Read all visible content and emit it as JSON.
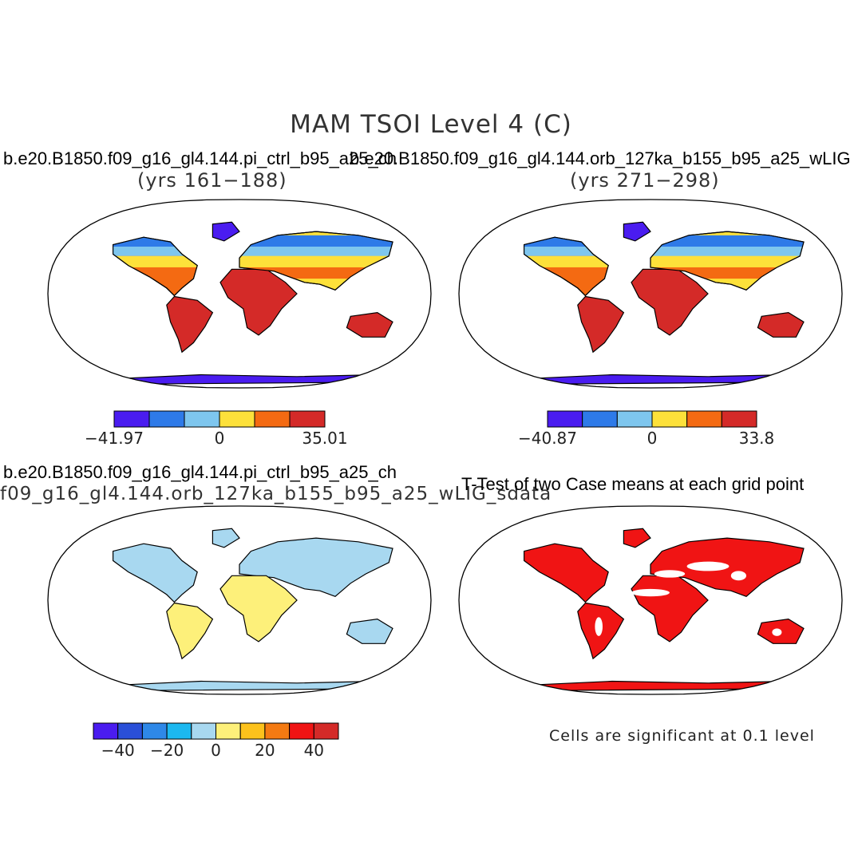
{
  "title": "MAM TSOI Level 4 (C)",
  "panels": {
    "case1": {
      "title": "b.e20.B1850.f09_g16_gl4.144.pi_ctrl_b95_a25_ch",
      "years": "(yrs 161−188)",
      "colorbar": {
        "min_label": "−41.97",
        "mid_label": "0",
        "max_label": "35.01",
        "colors": [
          "#4a1cf0",
          "#2e7ae8",
          "#7ec6ee",
          "#fde13a",
          "#f46a12",
          "#d42a28"
        ]
      }
    },
    "case2": {
      "title": "b.e20.B1850.f09_g16_gl4.144.orb_127ka_b155_b95_a25_wLIG",
      "years": "(yrs 271−298)",
      "colorbar": {
        "min_label": "−40.87",
        "mid_label": "0",
        "max_label": "33.8",
        "colors": [
          "#4a1cf0",
          "#2e7ae8",
          "#7ec6ee",
          "#fde13a",
          "#f46a12",
          "#d42a28"
        ]
      }
    },
    "diff": {
      "title_line1": "b.e20.B1850.f09_g16_gl4.144.pi_ctrl_b95_a25_ch",
      "title_line2": "f09_g16_gl4.144.orb_127ka_b155_b95_a25_wLIG_sdata",
      "colorbar": {
        "tick_labels": [
          "−40",
          "−20",
          "0",
          "20",
          "40"
        ],
        "colors": [
          "#4a1cf0",
          "#2a4fd8",
          "#2e88e8",
          "#1cb8f0",
          "#a8d8f0",
          "#fdf07a",
          "#fcc21c",
          "#f47a12",
          "#f01414",
          "#d42a28"
        ]
      }
    },
    "ttest": {
      "title": "T-Test of two Case means at each grid point",
      "note": "Cells are significant at 0.1 level"
    }
  },
  "map_colors": {
    "cold_deep": "#4a1cf0",
    "cold": "#2e7ae8",
    "cool": "#7ec6ee",
    "mild": "#fde13a",
    "warm": "#f46a12",
    "hot": "#d42a28",
    "diff_neg": "#a8d8f0",
    "diff_pos": "#fdf07a",
    "sig": "#f01414",
    "coast": "#000000"
  }
}
